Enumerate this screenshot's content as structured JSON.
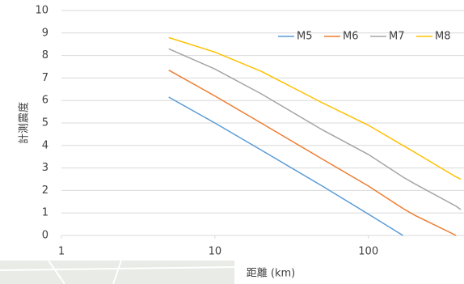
{
  "chart_data": {
    "type": "line",
    "xlabel": "距離 (km)",
    "ylabel": "計測震度",
    "x": [
      5,
      10,
      20,
      50,
      100,
      168,
      200,
      373,
      400
    ],
    "series": [
      {
        "name": "M5",
        "color": "#5b9bd5",
        "values": [
          6.15,
          5.0,
          3.8,
          2.2,
          0.95,
          0,
          null,
          null,
          null
        ]
      },
      {
        "name": "M6",
        "color": "#ed7d31",
        "values": [
          7.35,
          6.2,
          5.0,
          3.4,
          2.2,
          1.2,
          0.9,
          0,
          null
        ]
      },
      {
        "name": "M7",
        "color": "#a5a5a5",
        "values": [
          8.3,
          7.4,
          6.3,
          4.7,
          3.6,
          2.6,
          2.3,
          1.3,
          1.15
        ]
      },
      {
        "name": "M8",
        "color": "#ffc000",
        "values": [
          8.8,
          8.15,
          7.3,
          5.9,
          4.9,
          4.0,
          3.7,
          2.6,
          2.5
        ]
      }
    ],
    "xlog": true,
    "xlim": [
      1,
      400
    ],
    "xticks": [
      1,
      10,
      100
    ],
    "ylim": [
      0,
      10
    ],
    "yticks": [
      0,
      1,
      2,
      3,
      4,
      5,
      6,
      7,
      8,
      9,
      10
    ],
    "grid": true,
    "legend": "top-right"
  }
}
